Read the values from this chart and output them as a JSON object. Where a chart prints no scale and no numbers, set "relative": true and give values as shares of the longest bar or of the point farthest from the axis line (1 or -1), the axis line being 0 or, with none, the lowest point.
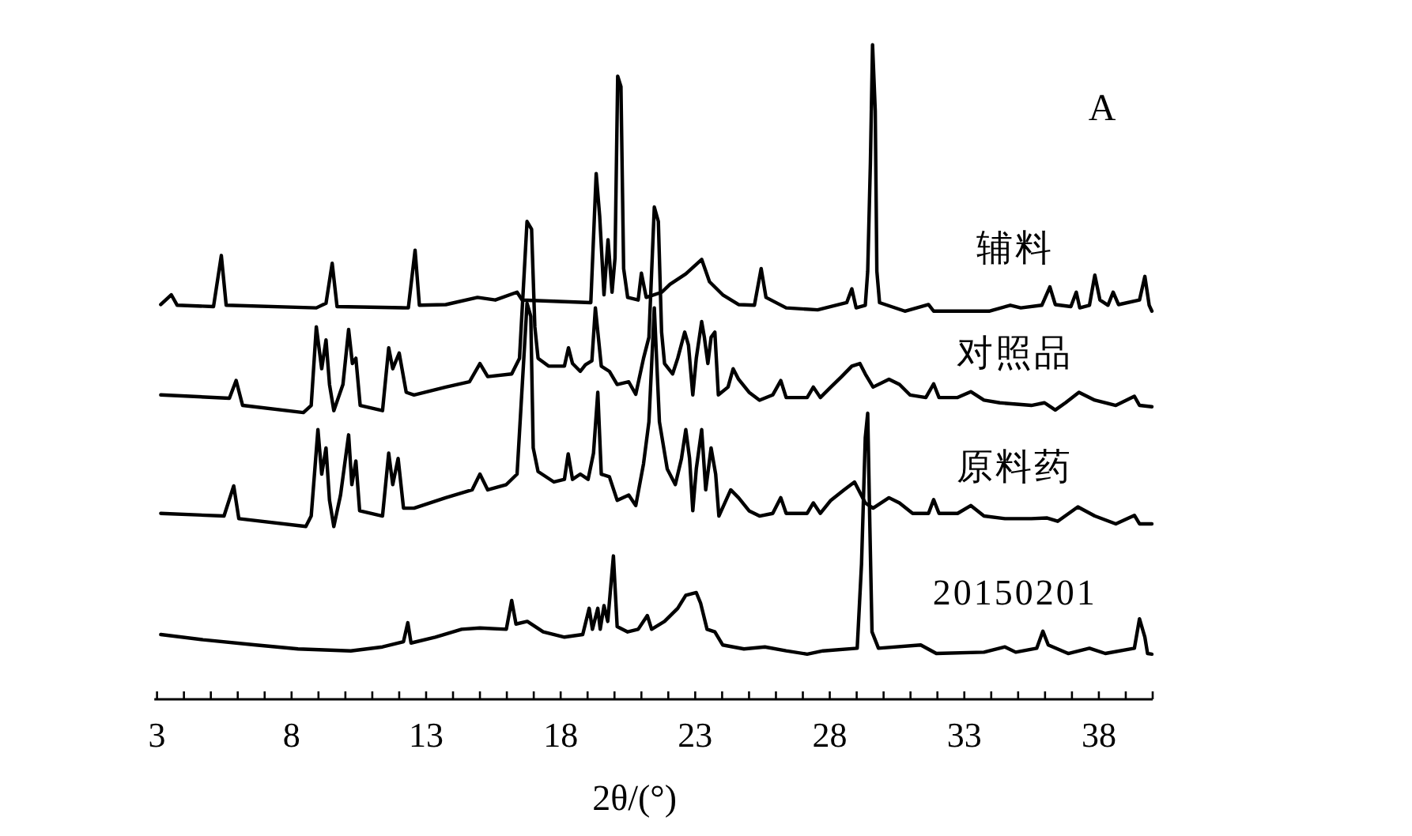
{
  "chart_data": {
    "type": "line",
    "relative": true,
    "xlabel": "2θ/(°)",
    "annotations": [
      "A"
    ],
    "xlim": [
      2.9,
      40
    ],
    "xticks": [
      3,
      {
        "value": 4,
        "label": null
      },
      {
        "value": 5,
        "label": null
      },
      {
        "value": 6,
        "label": null
      },
      {
        "value": 7,
        "label": null
      },
      8,
      {
        "value": 9,
        "label": null
      },
      {
        "value": 10,
        "label": null
      },
      {
        "value": 11,
        "label": null
      },
      {
        "value": 12,
        "label": null
      },
      13,
      {
        "value": 14,
        "label": null
      },
      {
        "value": 15,
        "label": null
      },
      {
        "value": 16,
        "label": null
      },
      {
        "value": 17,
        "label": null
      },
      18,
      {
        "value": 19,
        "label": null
      },
      {
        "value": 20,
        "label": null
      },
      {
        "value": 21,
        "label": null
      },
      {
        "value": 22,
        "label": null
      },
      23,
      {
        "value": 24,
        "label": null
      },
      {
        "value": 25,
        "label": null
      },
      {
        "value": 26,
        "label": null
      },
      {
        "value": 27,
        "label": null
      },
      28,
      {
        "value": 29,
        "label": null
      },
      {
        "value": 30,
        "label": null
      },
      {
        "value": 31,
        "label": null
      },
      {
        "value": 32,
        "label": null
      },
      33,
      {
        "value": 34,
        "label": null
      },
      {
        "value": 35,
        "label": null
      },
      {
        "value": 36,
        "label": null
      },
      {
        "value": 37,
        "label": null
      },
      38,
      {
        "value": 39,
        "label": null
      },
      {
        "value": 40,
        "label": null
      }
    ],
    "grid": false,
    "marker": "none",
    "line_style": "solid",
    "series": [
      {
        "name": "辅料",
        "color": "#000000",
        "x": [
          3.14,
          3.53,
          3.75,
          5.1,
          5.39,
          5.57,
          8.92,
          9.28,
          9.51,
          9.69,
          12.34,
          12.59,
          12.75,
          13.73,
          14.91,
          15.57,
          16.38,
          16.57,
          19.12,
          19.32,
          19.45,
          19.61,
          19.76,
          19.91,
          20.02,
          20.12,
          20.24,
          20.34,
          20.49,
          20.88,
          21.0,
          21.18,
          21.76,
          22.06,
          22.65,
          23.24,
          23.53,
          24.02,
          24.61,
          25.2,
          25.45,
          25.63,
          26.38,
          27.55,
          28.63,
          28.82,
          28.98,
          29.32,
          29.41,
          29.51,
          29.59,
          29.69,
          29.75,
          29.85,
          30.79,
          31.67,
          31.86,
          33.92,
          34.71,
          35.1,
          35.88,
          36.18,
          36.38,
          36.96,
          37.16,
          37.29,
          37.65,
          37.85,
          38.04,
          38.34,
          38.53,
          38.73,
          39.51,
          39.71,
          39.87,
          39.97
        ],
        "values": [
          0.603,
          0.618,
          0.602,
          0.6,
          0.678,
          0.602,
          0.598,
          0.605,
          0.666,
          0.6,
          0.598,
          0.686,
          0.602,
          0.603,
          0.614,
          0.61,
          0.622,
          0.61,
          0.606,
          0.803,
          0.738,
          0.618,
          0.702,
          0.622,
          0.674,
          0.952,
          0.936,
          0.658,
          0.614,
          0.61,
          0.651,
          0.614,
          0.622,
          0.634,
          0.65,
          0.672,
          0.638,
          0.618,
          0.603,
          0.602,
          0.658,
          0.614,
          0.598,
          0.595,
          0.606,
          0.627,
          0.598,
          0.602,
          0.654,
          0.819,
          1.0,
          0.899,
          0.654,
          0.606,
          0.593,
          0.603,
          0.593,
          0.593,
          0.602,
          0.598,
          0.602,
          0.63,
          0.603,
          0.6,
          0.622,
          0.598,
          0.602,
          0.648,
          0.61,
          0.602,
          0.622,
          0.603,
          0.61,
          0.646,
          0.602,
          0.593
        ]
      },
      {
        "name": "对照品",
        "color": "#000000",
        "x": [
          3.14,
          5.69,
          5.94,
          6.18,
          8.44,
          8.73,
          8.92,
          9.12,
          9.28,
          9.41,
          9.57,
          9.91,
          10.12,
          10.26,
          10.39,
          10.55,
          11.38,
          11.61,
          11.76,
          12.0,
          12.26,
          12.55,
          13.73,
          14.61,
          15.0,
          15.29,
          16.18,
          16.47,
          16.75,
          16.92,
          17.04,
          17.16,
          17.55,
          18.14,
          18.29,
          18.44,
          18.73,
          18.92,
          19.16,
          19.29,
          19.51,
          19.81,
          20.1,
          20.53,
          20.79,
          21.08,
          21.28,
          21.48,
          21.63,
          21.75,
          21.86,
          22.16,
          22.35,
          22.61,
          22.75,
          22.91,
          23.04,
          23.24,
          23.34,
          23.47,
          23.59,
          23.73,
          23.86,
          24.22,
          24.41,
          24.61,
          25.0,
          25.39,
          25.88,
          26.18,
          26.38,
          27.16,
          27.39,
          27.65,
          28.04,
          28.44,
          28.82,
          29.12,
          29.32,
          29.61,
          30.2,
          30.59,
          30.98,
          31.57,
          31.86,
          32.06,
          32.75,
          33.24,
          33.73,
          34.32,
          35.49,
          35.98,
          36.38,
          36.76,
          37.26,
          37.85,
          38.63,
          39.32,
          39.51,
          39.97
        ],
        "values": [
          0.465,
          0.46,
          0.487,
          0.449,
          0.438,
          0.449,
          0.569,
          0.505,
          0.549,
          0.481,
          0.441,
          0.481,
          0.565,
          0.513,
          0.521,
          0.449,
          0.441,
          0.537,
          0.505,
          0.529,
          0.469,
          0.465,
          0.477,
          0.485,
          0.513,
          0.493,
          0.497,
          0.521,
          0.73,
          0.718,
          0.569,
          0.521,
          0.509,
          0.509,
          0.537,
          0.513,
          0.501,
          0.511,
          0.517,
          0.598,
          0.509,
          0.501,
          0.481,
          0.485,
          0.466,
          0.521,
          0.553,
          0.752,
          0.73,
          0.561,
          0.513,
          0.497,
          0.521,
          0.561,
          0.541,
          0.465,
          0.521,
          0.577,
          0.553,
          0.513,
          0.553,
          0.561,
          0.465,
          0.477,
          0.505,
          0.489,
          0.469,
          0.457,
          0.465,
          0.487,
          0.461,
          0.461,
          0.477,
          0.461,
          0.477,
          0.493,
          0.509,
          0.513,
          0.497,
          0.477,
          0.489,
          0.481,
          0.465,
          0.461,
          0.482,
          0.461,
          0.461,
          0.47,
          0.457,
          0.453,
          0.449,
          0.453,
          0.442,
          0.453,
          0.469,
          0.457,
          0.449,
          0.463,
          0.449,
          0.447
        ]
      },
      {
        "name": "原料药",
        "color": "#000000",
        "x": [
          3.14,
          5.49,
          5.85,
          6.04,
          8.53,
          8.73,
          8.98,
          9.12,
          9.28,
          9.41,
          9.57,
          9.82,
          10.12,
          10.24,
          10.39,
          10.53,
          11.38,
          11.61,
          11.76,
          11.96,
          12.16,
          12.55,
          13.73,
          14.71,
          15.0,
          15.29,
          15.98,
          16.38,
          16.75,
          16.89,
          16.98,
          17.16,
          17.75,
          18.14,
          18.28,
          18.44,
          18.73,
          19.02,
          19.22,
          19.38,
          19.51,
          19.81,
          20.1,
          20.53,
          20.79,
          21.08,
          21.28,
          21.48,
          21.67,
          21.96,
          22.26,
          22.49,
          22.65,
          22.79,
          22.91,
          23.04,
          23.24,
          23.39,
          23.59,
          23.76,
          23.88,
          24.32,
          24.61,
          25.0,
          25.39,
          25.88,
          26.18,
          26.38,
          27.16,
          27.39,
          27.65,
          28.04,
          28.53,
          28.92,
          29.32,
          29.61,
          30.2,
          30.59,
          31.08,
          31.67,
          31.86,
          32.06,
          32.75,
          33.24,
          33.73,
          34.51,
          35.49,
          36.08,
          36.47,
          37.22,
          37.85,
          38.63,
          39.32,
          39.51,
          39.97
        ],
        "values": [
          0.284,
          0.28,
          0.326,
          0.276,
          0.264,
          0.28,
          0.412,
          0.344,
          0.384,
          0.304,
          0.264,
          0.312,
          0.404,
          0.328,
          0.364,
          0.288,
          0.28,
          0.376,
          0.328,
          0.368,
          0.292,
          0.292,
          0.308,
          0.32,
          0.344,
          0.32,
          0.328,
          0.344,
          0.605,
          0.585,
          0.384,
          0.348,
          0.332,
          0.336,
          0.375,
          0.336,
          0.344,
          0.336,
          0.376,
          0.469,
          0.344,
          0.34,
          0.304,
          0.312,
          0.296,
          0.36,
          0.424,
          0.598,
          0.424,
          0.352,
          0.328,
          0.368,
          0.412,
          0.368,
          0.288,
          0.352,
          0.412,
          0.32,
          0.384,
          0.344,
          0.28,
          0.32,
          0.308,
          0.288,
          0.28,
          0.284,
          0.308,
          0.284,
          0.284,
          0.3,
          0.284,
          0.304,
          0.32,
          0.332,
          0.3,
          0.292,
          0.308,
          0.3,
          0.284,
          0.284,
          0.305,
          0.284,
          0.284,
          0.296,
          0.28,
          0.276,
          0.276,
          0.277,
          0.272,
          0.294,
          0.28,
          0.268,
          0.281,
          0.268,
          0.268
        ]
      },
      {
        "name": "20150201",
        "color": "#000000",
        "x": [
          3.14,
          4.71,
          6.67,
          8.24,
          10.2,
          11.38,
          12.16,
          12.32,
          12.44,
          13.34,
          14.32,
          15.0,
          15.98,
          16.18,
          16.34,
          16.76,
          17.35,
          18.14,
          18.82,
          19.06,
          19.18,
          19.38,
          19.47,
          19.61,
          19.75,
          19.96,
          20.1,
          20.49,
          20.88,
          21.22,
          21.38,
          21.86,
          22.35,
          22.65,
          23.04,
          23.2,
          23.44,
          23.73,
          24.02,
          24.81,
          25.59,
          26.38,
          27.16,
          27.75,
          29.02,
          29.18,
          29.32,
          29.41,
          29.49,
          29.57,
          29.81,
          31.38,
          31.96,
          33.73,
          34.51,
          34.91,
          35.69,
          35.92,
          36.12,
          36.86,
          37.65,
          38.24,
          39.32,
          39.51,
          39.71,
          39.81,
          39.97
        ],
        "values": [
          0.099,
          0.091,
          0.083,
          0.077,
          0.074,
          0.08,
          0.088,
          0.117,
          0.086,
          0.095,
          0.107,
          0.109,
          0.107,
          0.151,
          0.115,
          0.119,
          0.103,
          0.095,
          0.099,
          0.139,
          0.107,
          0.139,
          0.107,
          0.143,
          0.119,
          0.219,
          0.111,
          0.103,
          0.107,
          0.128,
          0.107,
          0.119,
          0.139,
          0.159,
          0.163,
          0.147,
          0.107,
          0.103,
          0.083,
          0.077,
          0.08,
          0.074,
          0.069,
          0.074,
          0.078,
          0.207,
          0.4,
          0.437,
          0.264,
          0.103,
          0.078,
          0.083,
          0.07,
          0.072,
          0.08,
          0.072,
          0.078,
          0.104,
          0.083,
          0.07,
          0.078,
          0.07,
          0.078,
          0.123,
          0.095,
          0.07,
          0.069
        ]
      }
    ]
  }
}
